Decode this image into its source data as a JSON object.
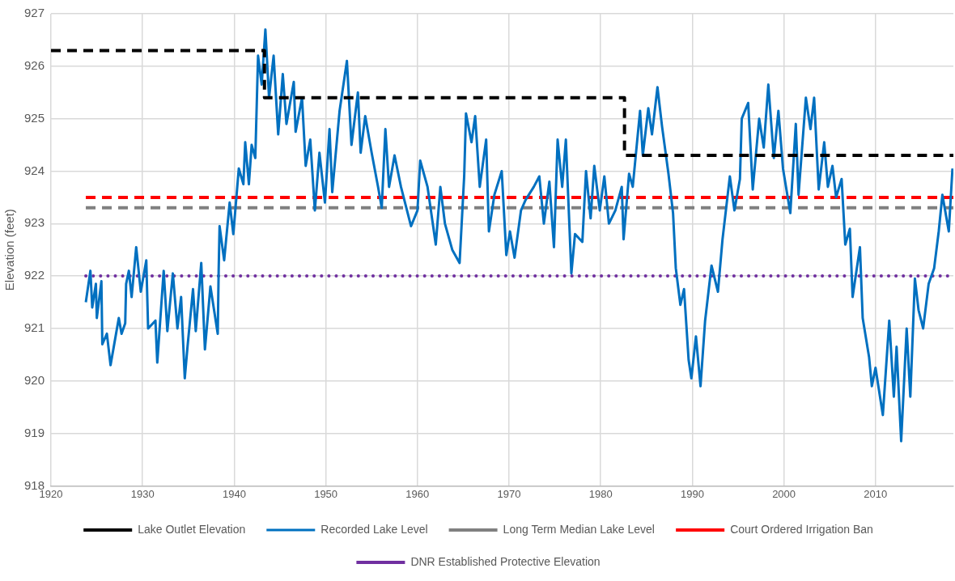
{
  "chart_data": {
    "type": "line",
    "ylabel": "Elevation (feet)",
    "xlim": [
      1920,
      2018.5
    ],
    "xticks": [
      1920,
      1930,
      1940,
      1950,
      1960,
      1970,
      1980,
      1990,
      2000,
      2010
    ],
    "ylim": [
      918,
      927
    ],
    "yticks": [
      918,
      919,
      920,
      921,
      922,
      923,
      924,
      925,
      926,
      927
    ],
    "grid": true,
    "legend": "bottom",
    "marker": "none",
    "series": [
      {
        "name": "Lake Outlet Elevation",
        "color": "#000000",
        "line_style": "dashed",
        "x": [
          1920,
          1943.3,
          1943.3,
          1982.6,
          1982.6,
          2018.5
        ],
        "values": [
          926.3,
          926.3,
          925.4,
          925.4,
          924.3,
          924.3
        ]
      },
      {
        "name": "Recorded Lake Level",
        "color": "#0070c0",
        "line_style": "solid",
        "x": [
          1923.8,
          1924.3,
          1924.5,
          1924.9,
          1925.0,
          1925.5,
          1925.6,
          1926.1,
          1926.5,
          1926.9,
          1927.4,
          1927.7,
          1928.1,
          1928.2,
          1928.5,
          1928.8,
          1929.3,
          1929.8,
          1930.4,
          1930.6,
          1931.4,
          1931.6,
          1932.0,
          1932.3,
          1932.7,
          1933.3,
          1933.8,
          1934.2,
          1934.6,
          1934.9,
          1935.5,
          1935.8,
          1936.4,
          1936.8,
          1937.4,
          1938.2,
          1938.3,
          1938.4,
          1938.9,
          1939.5,
          1939.9,
          1940.5,
          1941.0,
          1941.2,
          1941.6,
          1941.9,
          1942.3,
          1942.6,
          1943.0,
          1943.4,
          1943.8,
          1944.3,
          1944.8,
          1945.3,
          1945.7,
          1946.5,
          1946.7,
          1947.4,
          1947.8,
          1948.3,
          1948.8,
          1949.3,
          1949.9,
          1950.4,
          1950.7,
          1951.5,
          1952.3,
          1952.8,
          1953.5,
          1953.8,
          1954.3,
          1955.0,
          1955.7,
          1956.1,
          1956.5,
          1956.9,
          1957.5,
          1958.2,
          1959.3,
          1960.0,
          1960.3,
          1961.1,
          1962.0,
          1962.5,
          1963.0,
          1963.8,
          1964.6,
          1965.1,
          1965.3,
          1965.9,
          1966.3,
          1966.8,
          1967.5,
          1967.8,
          1968.4,
          1969.2,
          1969.7,
          1970.1,
          1970.6,
          1971.3,
          1971.8,
          1972.7,
          1973.3,
          1973.8,
          1974.4,
          1974.9,
          1975.3,
          1975.8,
          1976.2,
          1976.8,
          1977.2,
          1978.0,
          1978.4,
          1978.9,
          1979.3,
          1979.9,
          1980.4,
          1980.9,
          1981.6,
          1982.3,
          1982.5,
          1983.1,
          1983.5,
          1984.3,
          1984.6,
          1985.2,
          1985.6,
          1986.2,
          1986.7,
          1987.4,
          1987.9,
          1988.2,
          1988.7,
          1989.1,
          1989.6,
          1989.9,
          1990.4,
          1990.9,
          1991.4,
          1992.1,
          1992.8,
          1993.3,
          1994.1,
          1994.6,
          1995.2,
          1995.4,
          1996.1,
          1996.6,
          1997.3,
          1997.8,
          1998.3,
          1998.9,
          1999.4,
          1999.9,
          2000.7,
          2001.3,
          2001.6,
          2002.4,
          2002.9,
          2003.3,
          2003.8,
          2004.4,
          2004.8,
          2005.3,
          2005.7,
          2006.3,
          2006.7,
          2007.2,
          2007.5,
          2008.3,
          2008.6,
          2009.3,
          2009.6,
          2010.0,
          2010.8,
          2011.5,
          2012.0,
          2012.3,
          2012.8,
          2013.4,
          2013.8,
          2014.3,
          2014.7,
          2015.2,
          2015.8,
          2016.4,
          2016.9,
          2017.3,
          2018.0,
          2018.4
        ],
        "values": [
          921.5,
          922.1,
          921.4,
          921.85,
          921.2,
          921.9,
          920.7,
          920.9,
          920.3,
          920.7,
          921.2,
          920.9,
          921.1,
          921.85,
          922.1,
          921.6,
          922.55,
          921.7,
          922.3,
          921.0,
          921.15,
          920.35,
          921.35,
          922.1,
          920.95,
          922.05,
          921.0,
          921.6,
          920.05,
          920.65,
          921.75,
          920.95,
          922.25,
          920.6,
          921.8,
          920.9,
          922.1,
          922.95,
          922.3,
          923.4,
          922.8,
          924.05,
          923.75,
          924.55,
          923.75,
          924.5,
          924.25,
          926.2,
          925.65,
          926.7,
          925.4,
          926.2,
          924.7,
          925.85,
          924.9,
          925.7,
          924.75,
          925.4,
          924.1,
          924.6,
          923.25,
          924.35,
          923.4,
          924.8,
          923.6,
          925.15,
          926.1,
          924.5,
          925.5,
          924.35,
          925.05,
          924.35,
          923.7,
          923.3,
          924.8,
          923.7,
          924.3,
          923.7,
          922.95,
          923.25,
          924.2,
          923.7,
          922.6,
          923.7,
          923.0,
          922.5,
          922.25,
          923.9,
          925.1,
          924.55,
          925.05,
          923.7,
          924.6,
          922.85,
          923.55,
          924.0,
          922.4,
          922.85,
          922.35,
          923.25,
          923.45,
          923.7,
          923.9,
          923.0,
          923.8,
          922.55,
          924.6,
          923.7,
          924.6,
          922.05,
          922.8,
          922.65,
          924.0,
          923.1,
          924.1,
          923.25,
          923.9,
          923.0,
          923.25,
          923.7,
          922.7,
          923.95,
          923.7,
          925.15,
          924.3,
          925.2,
          924.7,
          925.6,
          924.85,
          923.95,
          923.2,
          922.15,
          921.45,
          921.75,
          920.4,
          920.05,
          920.85,
          919.9,
          921.15,
          922.2,
          921.7,
          922.7,
          923.9,
          923.25,
          923.85,
          925.0,
          925.3,
          923.65,
          925.0,
          924.45,
          925.65,
          924.25,
          925.15,
          924.05,
          923.2,
          924.9,
          923.55,
          925.4,
          924.8,
          925.4,
          923.65,
          924.55,
          923.7,
          924.1,
          923.5,
          923.85,
          922.6,
          922.9,
          921.6,
          922.55,
          921.2,
          920.45,
          919.9,
          920.25,
          919.35,
          921.15,
          919.7,
          920.65,
          918.85,
          921.0,
          919.7,
          921.95,
          921.35,
          921.0,
          921.85,
          922.15,
          922.85,
          923.55,
          922.85,
          924.05
        ]
      },
      {
        "name": "Long Term Median Lake Level",
        "color": "#808080",
        "line_style": "dashed",
        "x": [
          1923.8,
          2018.5
        ],
        "values": [
          923.3,
          923.3
        ]
      },
      {
        "name": "Court Ordered Irrigation Ban",
        "color": "#ff0000",
        "line_style": "dashed",
        "x": [
          1923.8,
          2018.5
        ],
        "values": [
          923.5,
          923.5
        ]
      },
      {
        "name": "DNR Established Protective Elevation",
        "color": "#7030a0",
        "line_style": "dotted",
        "x": [
          1923.8,
          2018.5
        ],
        "values": [
          922.0,
          922.0
        ]
      }
    ]
  }
}
